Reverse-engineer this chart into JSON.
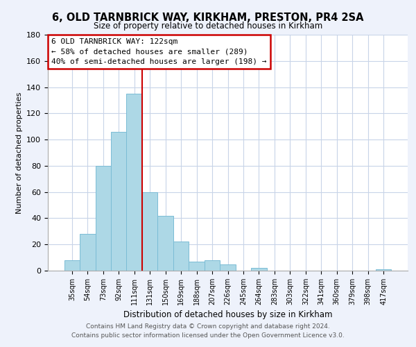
{
  "title": "6, OLD TARNBRICK WAY, KIRKHAM, PRESTON, PR4 2SA",
  "subtitle": "Size of property relative to detached houses in Kirkham",
  "xlabel": "Distribution of detached houses by size in Kirkham",
  "ylabel": "Number of detached properties",
  "bar_labels": [
    "35sqm",
    "54sqm",
    "73sqm",
    "92sqm",
    "111sqm",
    "131sqm",
    "150sqm",
    "169sqm",
    "188sqm",
    "207sqm",
    "226sqm",
    "245sqm",
    "264sqm",
    "283sqm",
    "303sqm",
    "322sqm",
    "341sqm",
    "360sqm",
    "379sqm",
    "398sqm",
    "417sqm"
  ],
  "bar_values": [
    8,
    28,
    80,
    106,
    135,
    60,
    42,
    22,
    7,
    8,
    5,
    0,
    2,
    0,
    0,
    0,
    0,
    0,
    0,
    0,
    1
  ],
  "bar_color": "#add8e6",
  "bar_edge_color": "#7bbcd5",
  "vline_color": "#cc0000",
  "ylim": [
    0,
    180
  ],
  "yticks": [
    0,
    20,
    40,
    60,
    80,
    100,
    120,
    140,
    160,
    180
  ],
  "annotation_title": "6 OLD TARNBRICK WAY: 122sqm",
  "annotation_line1": "← 58% of detached houses are smaller (289)",
  "annotation_line2": "40% of semi-detached houses are larger (198) →",
  "footer_line1": "Contains HM Land Registry data © Crown copyright and database right 2024.",
  "footer_line2": "Contains public sector information licensed under the Open Government Licence v3.0.",
  "bg_color": "#eef2fb",
  "plot_bg_color": "#ffffff",
  "grid_color": "#c8d4e8"
}
